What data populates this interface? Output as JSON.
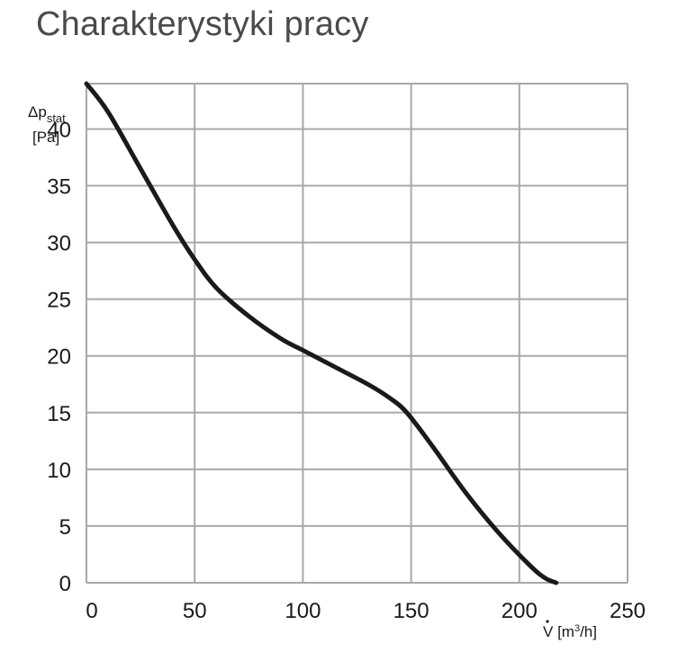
{
  "title": "Charakterystyki pracy",
  "chart_data": {
    "type": "line",
    "title": "Charakterystyki pracy",
    "xlabel": {
      "symbol": "V",
      "unit_open": " [m",
      "unit_sup": "3",
      "unit_close": "/h]"
    },
    "ylabel": {
      "symbol": "Δp",
      "sub": "stat",
      "unit": "[Pa]"
    },
    "xlim": [
      0,
      250
    ],
    "ylim": [
      0,
      45
    ],
    "grid": true,
    "x_ticks": [
      0,
      50,
      100,
      150,
      200,
      250
    ],
    "y_ticks": [
      0,
      5,
      10,
      15,
      20,
      25,
      30,
      35,
      40
    ],
    "series": [
      {
        "x": [
          0,
          10,
          25,
          40,
          50,
          60,
          75,
          90,
          100,
          115,
          130,
          140,
          148,
          160,
          175,
          190,
          205,
          212,
          217
        ],
        "y": [
          44,
          41.5,
          36.5,
          31.5,
          28.5,
          26,
          23.5,
          21.5,
          20.5,
          19,
          17.5,
          16.3,
          15,
          12,
          8,
          4.5,
          1.5,
          0.4,
          0
        ],
        "color": "#1a1a1a"
      }
    ]
  }
}
